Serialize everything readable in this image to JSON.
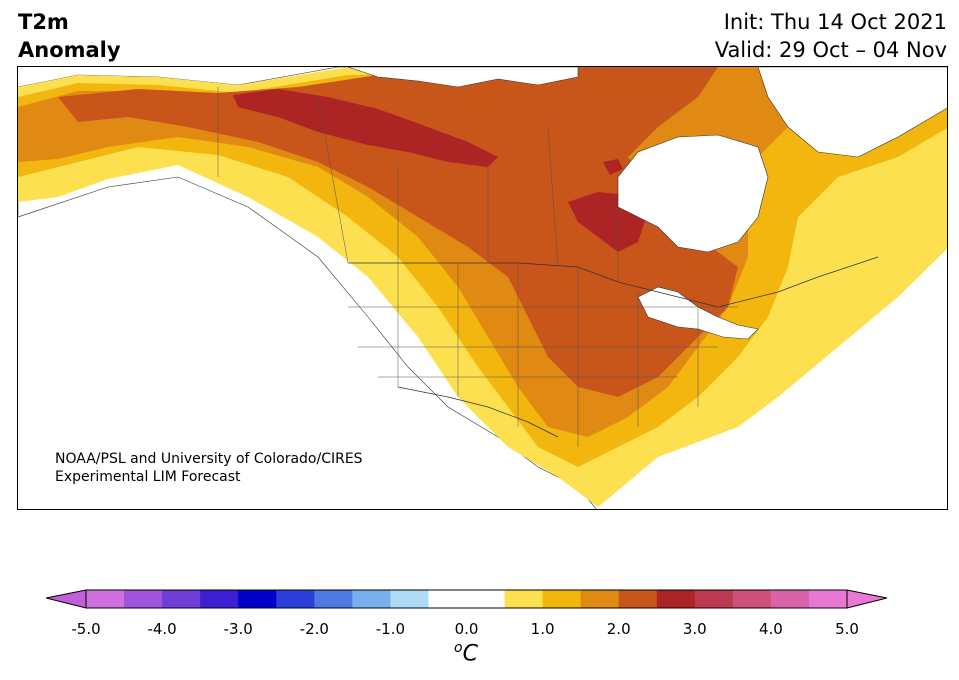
{
  "header": {
    "title_line1": "T2m",
    "title_line2": "Anomaly",
    "init": "Init: Thu 14 Oct 2021",
    "valid": "Valid: 29 Oct – 04 Nov"
  },
  "credit": {
    "line1": "NOAA/PSL and University of Colorado/CIRES",
    "line2": "Experimental LIM Forecast"
  },
  "colorbar": {
    "ticks": [
      "-5.0",
      "-4.0",
      "-3.0",
      "-2.0",
      "-1.0",
      "0.0",
      "1.0",
      "2.0",
      "3.0",
      "4.0",
      "5.0"
    ],
    "unit_o": "o",
    "unit_c": "C",
    "colors": [
      "#d070e0",
      "#9e55dc",
      "#6e3ed6",
      "#3c1fd2",
      "#0000cc",
      "#2a3ed8",
      "#4e78e2",
      "#78b0ee",
      "#aedcf8",
      "#ffffff",
      "#ffffff",
      "#fde050",
      "#f2b60e",
      "#e08a14",
      "#c8561a",
      "#ac2424",
      "#bc3a50",
      "#cc5078",
      "#da62a8",
      "#e878d4"
    ],
    "under_color": "#c060d8",
    "over_color": "#e878d4"
  },
  "map": {
    "land_color": "#ffffff",
    "water_color": "#ffffff",
    "anomaly_levels": [
      "0.5-1.0",
      "1.0-1.5",
      "1.5-2.0",
      "2.0-2.5",
      "2.5-3.0"
    ],
    "anomaly_colors": [
      "#fde050",
      "#f2b60e",
      "#e08a14",
      "#c8561a",
      "#ac2424"
    ]
  }
}
